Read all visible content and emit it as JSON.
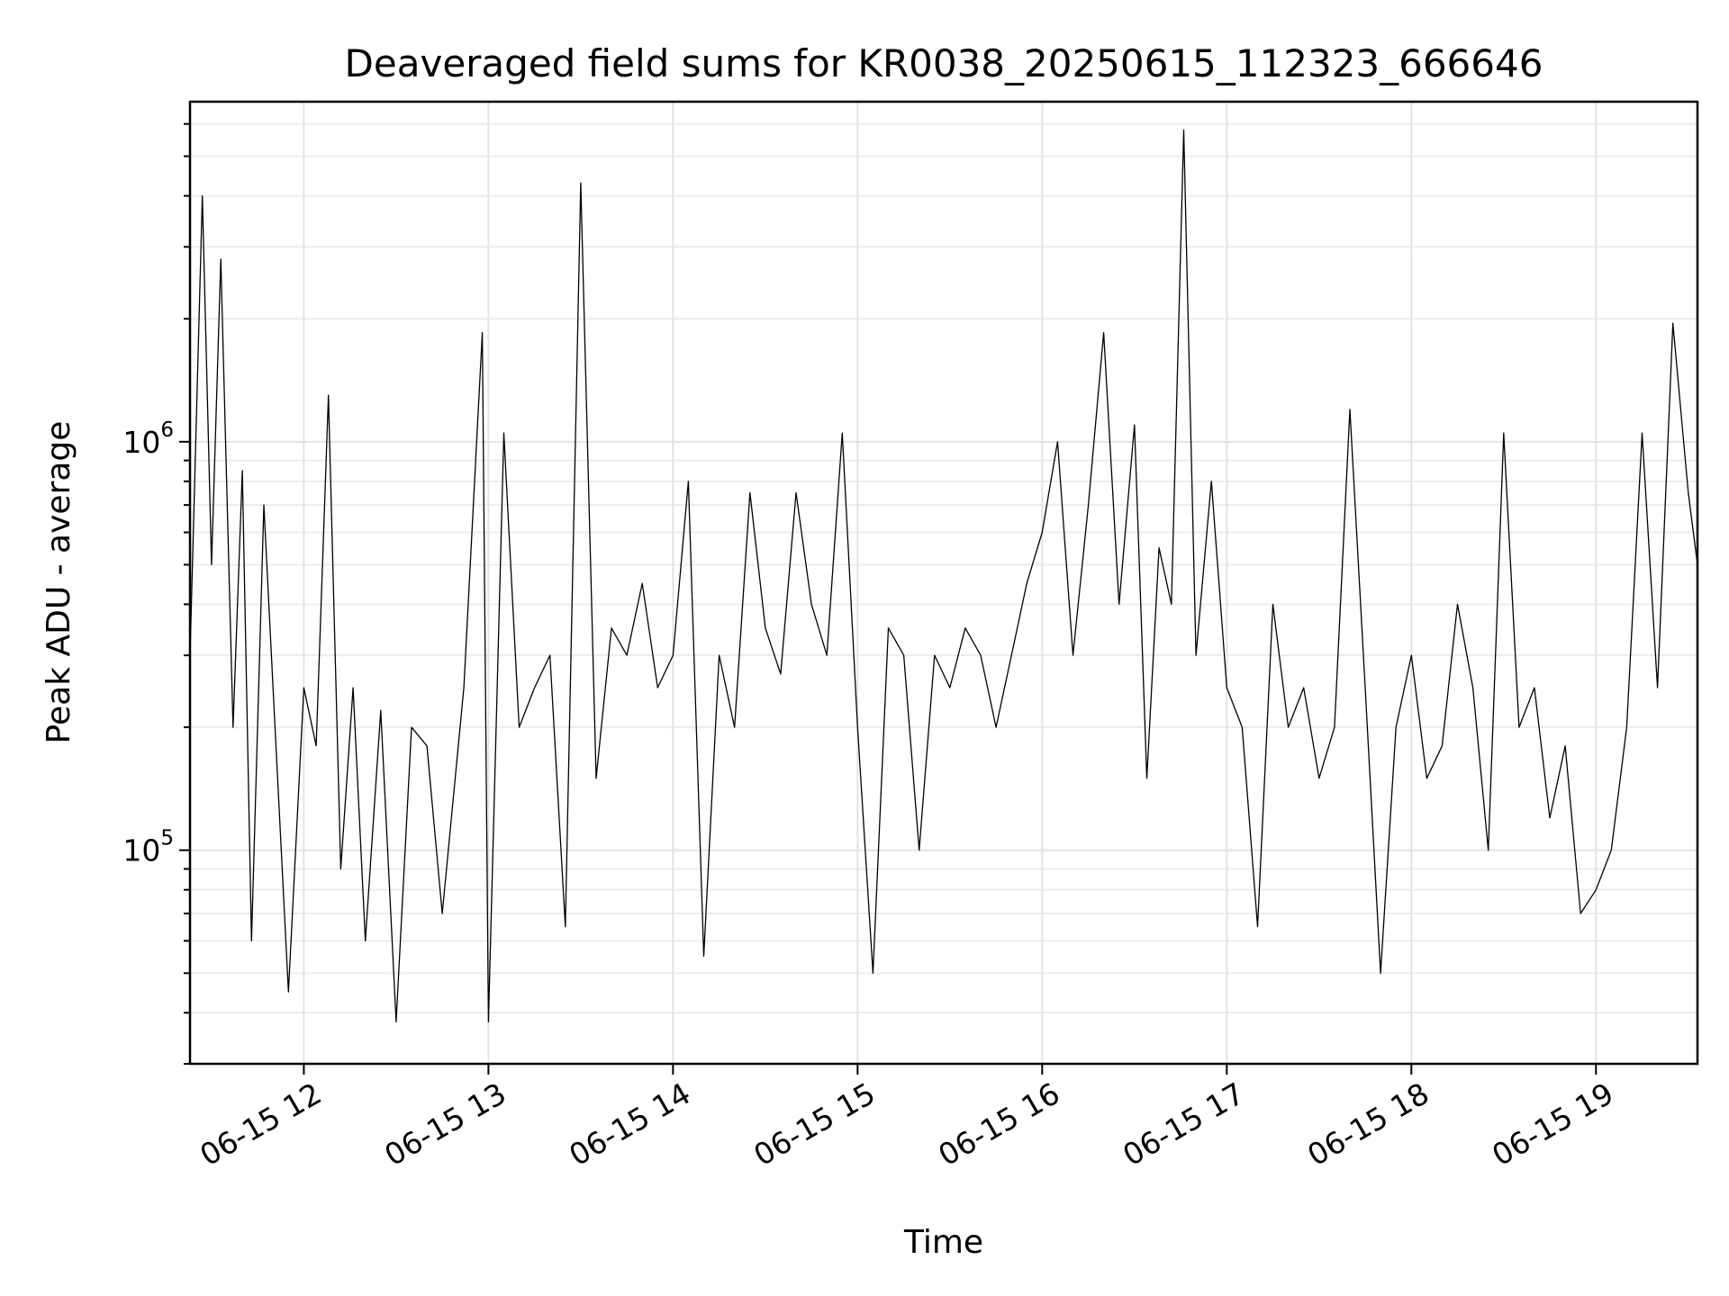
{
  "chart_data": {
    "type": "line",
    "title": "Deaveraged field sums for KR0038_20250615_112323_666646",
    "xlabel": "Time",
    "ylabel": "Peak ADU - average",
    "yscale": "log",
    "xlim": [
      "2025-06-15 11:23",
      "2025-06-15 19:33"
    ],
    "ylim": [
      30000,
      6800000
    ],
    "grid": true,
    "legend": "none",
    "line_color": "#000000",
    "x_ticks": [
      {
        "t": "2025-06-15 12:00",
        "label": "06-15 12"
      },
      {
        "t": "2025-06-15 13:00",
        "label": "06-15 13"
      },
      {
        "t": "2025-06-15 14:00",
        "label": "06-15 14"
      },
      {
        "t": "2025-06-15 15:00",
        "label": "06-15 15"
      },
      {
        "t": "2025-06-15 16:00",
        "label": "06-15 16"
      },
      {
        "t": "2025-06-15 17:00",
        "label": "06-15 17"
      },
      {
        "t": "2025-06-15 18:00",
        "label": "06-15 18"
      },
      {
        "t": "2025-06-15 19:00",
        "label": "06-15 19"
      }
    ],
    "y_ticks": [
      {
        "value": 100000,
        "base": "10",
        "exp": "5"
      },
      {
        "value": 1000000,
        "base": "10",
        "exp": "6"
      }
    ],
    "series": [
      {
        "x": [
          "2025-06-15 11:23",
          "2025-06-15 11:27",
          "2025-06-15 11:30",
          "2025-06-15 11:33",
          "2025-06-15 11:37",
          "2025-06-15 11:40",
          "2025-06-15 11:43",
          "2025-06-15 11:47",
          "2025-06-15 11:50",
          "2025-06-15 11:55",
          "2025-06-15 12:00",
          "2025-06-15 12:04",
          "2025-06-15 12:08",
          "2025-06-15 12:12",
          "2025-06-15 12:16",
          "2025-06-15 12:20",
          "2025-06-15 12:25",
          "2025-06-15 12:30",
          "2025-06-15 12:35",
          "2025-06-15 12:40",
          "2025-06-15 12:45",
          "2025-06-15 12:52",
          "2025-06-15 12:58",
          "2025-06-15 13:00",
          "2025-06-15 13:05",
          "2025-06-15 13:10",
          "2025-06-15 13:15",
          "2025-06-15 13:20",
          "2025-06-15 13:25",
          "2025-06-15 13:30",
          "2025-06-15 13:35",
          "2025-06-15 13:40",
          "2025-06-15 13:45",
          "2025-06-15 13:50",
          "2025-06-15 13:55",
          "2025-06-15 14:00",
          "2025-06-15 14:05",
          "2025-06-15 14:10",
          "2025-06-15 14:15",
          "2025-06-15 14:20",
          "2025-06-15 14:25",
          "2025-06-15 14:30",
          "2025-06-15 14:35",
          "2025-06-15 14:40",
          "2025-06-15 14:45",
          "2025-06-15 14:50",
          "2025-06-15 14:55",
          "2025-06-15 15:00",
          "2025-06-15 15:05",
          "2025-06-15 15:10",
          "2025-06-15 15:15",
          "2025-06-15 15:20",
          "2025-06-15 15:25",
          "2025-06-15 15:30",
          "2025-06-15 15:35",
          "2025-06-15 15:40",
          "2025-06-15 15:45",
          "2025-06-15 15:50",
          "2025-06-15 15:55",
          "2025-06-15 16:00",
          "2025-06-15 16:05",
          "2025-06-15 16:10",
          "2025-06-15 16:15",
          "2025-06-15 16:20",
          "2025-06-15 16:25",
          "2025-06-15 16:30",
          "2025-06-15 16:34",
          "2025-06-15 16:38",
          "2025-06-15 16:42",
          "2025-06-15 16:46",
          "2025-06-15 16:50",
          "2025-06-15 16:55",
          "2025-06-15 17:00",
          "2025-06-15 17:05",
          "2025-06-15 17:10",
          "2025-06-15 17:15",
          "2025-06-15 17:20",
          "2025-06-15 17:25",
          "2025-06-15 17:30",
          "2025-06-15 17:35",
          "2025-06-15 17:40",
          "2025-06-15 17:45",
          "2025-06-15 17:50",
          "2025-06-15 17:55",
          "2025-06-15 18:00",
          "2025-06-15 18:05",
          "2025-06-15 18:10",
          "2025-06-15 18:15",
          "2025-06-15 18:20",
          "2025-06-15 18:25",
          "2025-06-15 18:30",
          "2025-06-15 18:35",
          "2025-06-15 18:40",
          "2025-06-15 18:45",
          "2025-06-15 18:50",
          "2025-06-15 18:55",
          "2025-06-15 19:00",
          "2025-06-15 19:05",
          "2025-06-15 19:10",
          "2025-06-15 19:15",
          "2025-06-15 19:20",
          "2025-06-15 19:25",
          "2025-06-15 19:30",
          "2025-06-15 19:33"
        ],
        "y": [
          300000,
          4000000,
          500000,
          2800000,
          200000,
          850000,
          60000,
          700000,
          250000,
          45000,
          250000,
          180000,
          1300000,
          90000,
          250000,
          60000,
          220000,
          38000,
          200000,
          180000,
          70000,
          250000,
          1850000,
          38000,
          1050000,
          200000,
          250000,
          300000,
          65000,
          4300000,
          150000,
          350000,
          300000,
          450000,
          250000,
          300000,
          800000,
          55000,
          300000,
          200000,
          750000,
          350000,
          270000,
          750000,
          400000,
          300000,
          1050000,
          200000,
          50000,
          350000,
          300000,
          100000,
          300000,
          250000,
          350000,
          300000,
          200000,
          300000,
          450000,
          600000,
          1000000,
          300000,
          700000,
          1850000,
          400000,
          1100000,
          150000,
          550000,
          400000,
          5800000,
          300000,
          800000,
          250000,
          200000,
          65000,
          400000,
          200000,
          250000,
          150000,
          200000,
          1200000,
          250000,
          50000,
          200000,
          300000,
          150000,
          180000,
          400000,
          250000,
          100000,
          1050000,
          200000,
          250000,
          120000,
          180000,
          70000,
          80000,
          100000,
          200000,
          1050000,
          250000,
          1950000,
          750000,
          500000
        ]
      }
    ]
  }
}
